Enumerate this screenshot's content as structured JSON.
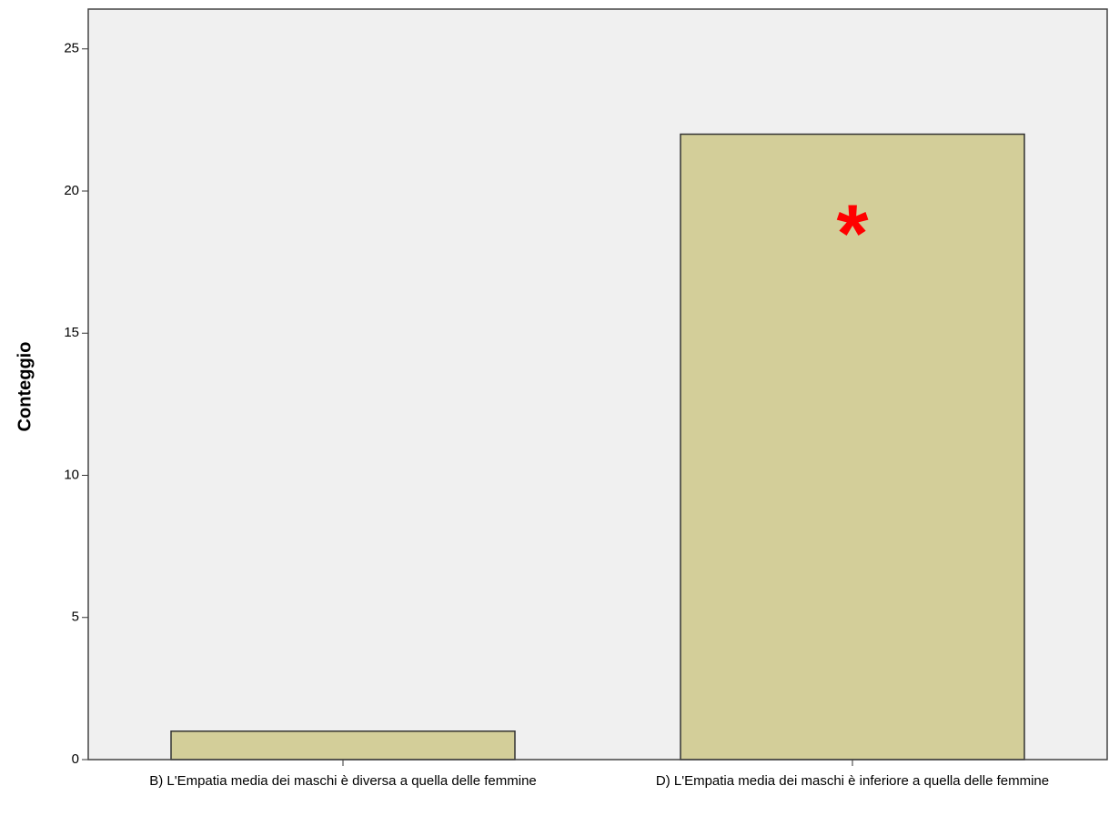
{
  "chart_data": {
    "type": "bar",
    "y_label": "Conteggio",
    "categories": [
      "B) L'Empatia media dei maschi è diversa a quella delle femmine",
      "D) L'Empatia media dei maschi è inferiore a quella delle femmine"
    ],
    "values": [
      1,
      22
    ],
    "color": "#d3ce99",
    "ylim": [
      0,
      26.4
    ],
    "yticks": [
      0,
      5,
      10,
      15,
      20,
      25
    ],
    "grid": false,
    "annotation": "*"
  }
}
